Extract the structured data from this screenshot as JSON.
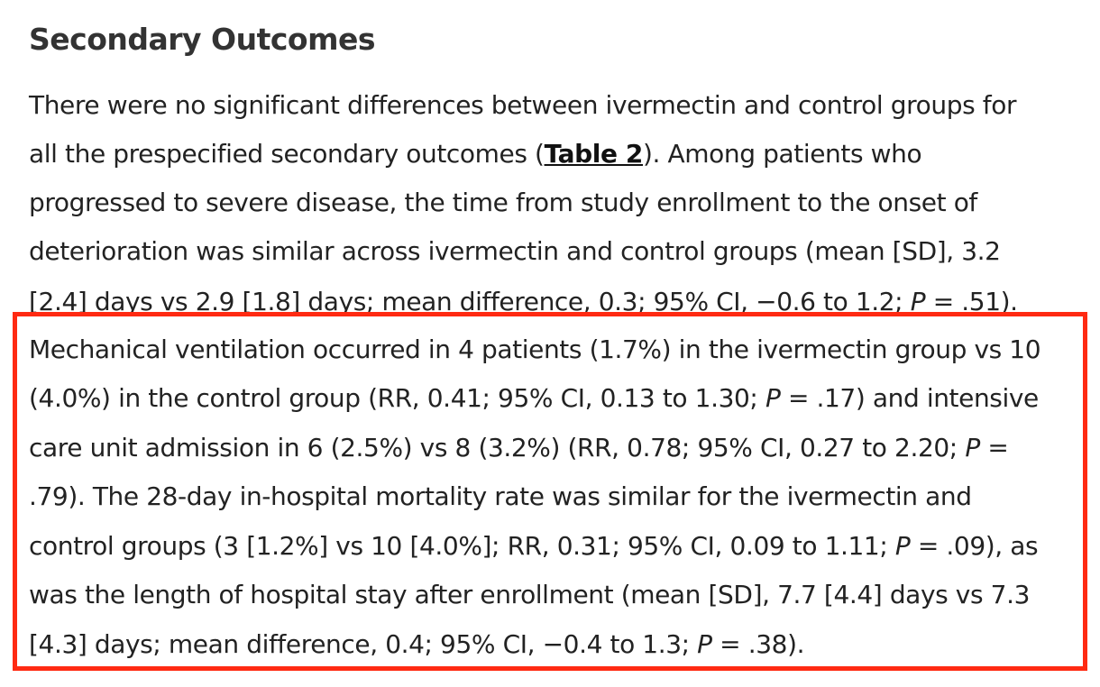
{
  "heading": "Secondary Outcomes",
  "highlight": {
    "color": "#ff2a12"
  },
  "lines": [
    {
      "text": "There were no significant differences between ivermectin and control groups for"
    },
    {
      "before": "all the prespecified secondary outcomes (",
      "link": "Table 2",
      "after": "). Among patients who"
    },
    {
      "text": "progressed to severe disease, the time from study enrollment to the onset of"
    },
    {
      "text": "deterioration was similar across ivermectin and control groups (mean [SD], 3.2"
    },
    {
      "before": "[2.4] days vs 2.9 [1.8] days; mean difference, 0.3; 95% CI, −0.6 to 1.2; ",
      "p": "P",
      "after": " = .51)."
    },
    {
      "text": "Mechanical ventilation occurred in 4 patients (1.7%) in the ivermectin group vs 10"
    },
    {
      "before": "(4.0%) in the control group (RR, 0.41; 95% CI, 0.13 to 1.30; ",
      "p": "P",
      "after": " = .17) and intensive"
    },
    {
      "before": "care unit admission in 6 (2.5%) vs 8 (3.2%) (RR, 0.78; 95% CI, 0.27 to 2.20; ",
      "p": "P",
      "after": " ="
    },
    {
      "text": ".79). The 28-day in-hospital mortality rate was similar for the ivermectin and"
    },
    {
      "before": "control groups (3 [1.2%] vs 10 [4.0%]; RR, 0.31; 95% CI, 0.09 to 1.11; ",
      "p": "P",
      "after": " = .09), as"
    },
    {
      "text": "was the length of hospital stay after enrollment (mean [SD], 7.7 [4.4] days vs 7.3"
    },
    {
      "before": "[4.3] days; mean difference, 0.4; 95% CI, −0.4 to 1.3; ",
      "p": "P",
      "after": " = .38)."
    }
  ]
}
